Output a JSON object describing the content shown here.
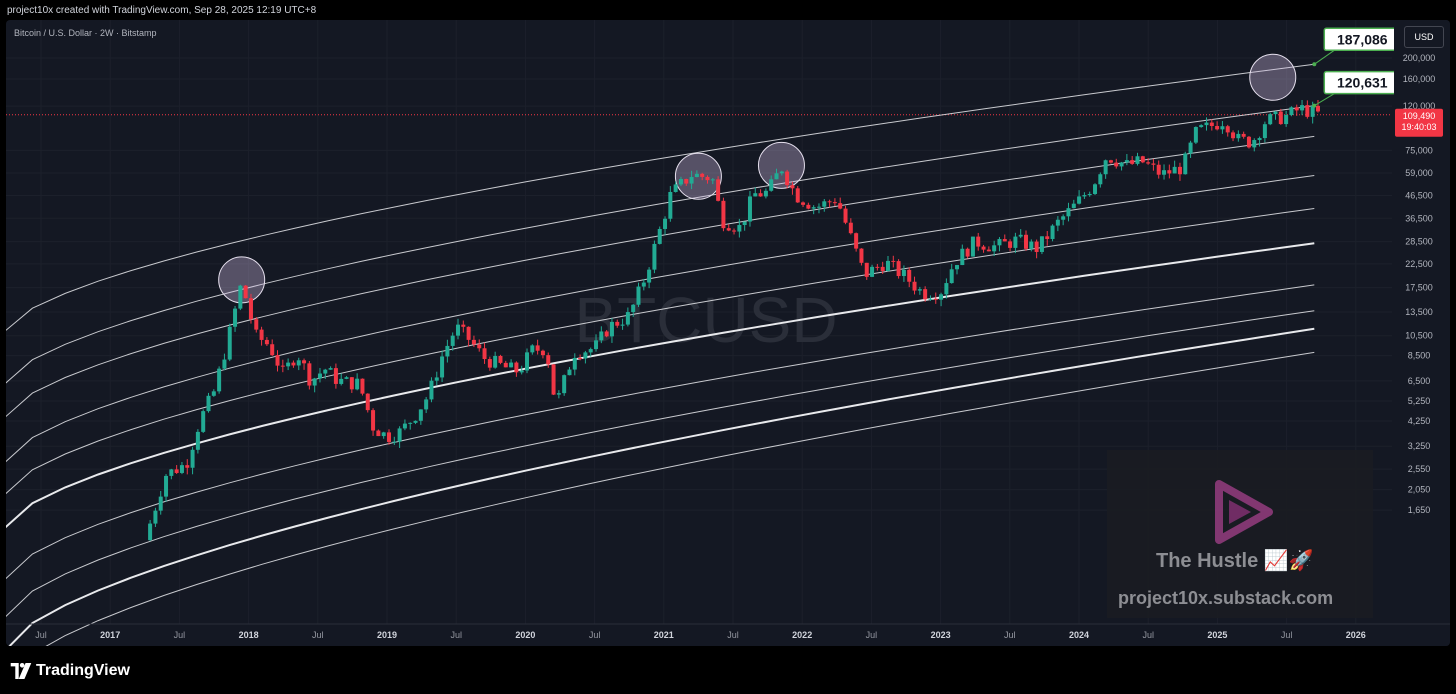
{
  "header": {
    "credit": "project10x created with TradingView.com, Sep 28, 2025 12:19 UTC+8"
  },
  "symbol_line": "Bitcoin / U.S. Dollar · 2W · Bitstamp",
  "currency": "USD",
  "watermark_symbol": "BTCUSD",
  "branding": {
    "name": "TradingView"
  },
  "watermark_logo": {
    "title": "The Hustle 📈🚀",
    "site": "project10x.substack.com"
  },
  "colors": {
    "up": "#22ab94",
    "down": "#f23645",
    "band": "#d1d4dc",
    "callout_border": "#4caf50",
    "price_tag": "#f23645",
    "background": "#141823"
  },
  "chart_data": {
    "type": "candlestick",
    "title": "Bitcoin / U.S. Dollar · 2W · Bitstamp",
    "y_scale": "log",
    "y_ticks": [
      200000,
      160000,
      120000,
      75000,
      59000,
      46500,
      36500,
      28500,
      22500,
      17500,
      13500,
      10500,
      8500,
      6500,
      5250,
      4250,
      3250,
      2550,
      2050,
      1650
    ],
    "y_tick_labels": [
      "200,000",
      "160,000",
      "120,000",
      "75,000",
      "59,000",
      "46,500",
      "36,500",
      "28,500",
      "22,500",
      "17,500",
      "13,500",
      "10,500",
      "8,500",
      "6,500",
      "5,250",
      "4,250",
      "3,250",
      "2,550",
      "2,050",
      "1,650"
    ],
    "x_tick_labels": [
      {
        "t": 2016.5,
        "label": "Jul"
      },
      {
        "t": 2017.0,
        "label": "2017"
      },
      {
        "t": 2017.5,
        "label": "Jul"
      },
      {
        "t": 2018.0,
        "label": "2018"
      },
      {
        "t": 2018.5,
        "label": "Jul"
      },
      {
        "t": 2019.0,
        "label": "2019"
      },
      {
        "t": 2019.5,
        "label": "Jul"
      },
      {
        "t": 2020.0,
        "label": "2020"
      },
      {
        "t": 2020.5,
        "label": "Jul"
      },
      {
        "t": 2021.0,
        "label": "2021"
      },
      {
        "t": 2021.5,
        "label": "Jul"
      },
      {
        "t": 2022.0,
        "label": "2022"
      },
      {
        "t": 2022.5,
        "label": "Jul"
      },
      {
        "t": 2023.0,
        "label": "2023"
      },
      {
        "t": 2023.5,
        "label": "Jul"
      },
      {
        "t": 2024.0,
        "label": "2024"
      },
      {
        "t": 2024.5,
        "label": "Jul"
      },
      {
        "t": 2025.0,
        "label": "2025"
      },
      {
        "t": 2025.5,
        "label": "Jul"
      },
      {
        "t": 2026.0,
        "label": "2026"
      }
    ],
    "last_price": {
      "value": 109490,
      "label": "109,490",
      "countdown": "19:40:03"
    },
    "callouts": [
      {
        "label": "187,086",
        "t": 2025.7,
        "value": 187086
      },
      {
        "label": "120,631",
        "t": 2025.7,
        "value": 120631
      }
    ],
    "highlight_circles": [
      {
        "t": 2017.95,
        "value": 19000
      },
      {
        "t": 2021.25,
        "value": 57000
      },
      {
        "t": 2021.85,
        "value": 64000
      },
      {
        "t": 2025.4,
        "value": 163000
      }
    ],
    "bands": [
      {
        "end": 187086,
        "start": 10500
      },
      {
        "end": 120631,
        "start": 6000
      },
      {
        "end": 87000,
        "start": 4200
      },
      {
        "end": 57500,
        "start": 2600
      },
      {
        "end": 40500,
        "start": 1850
      },
      {
        "end": 28000,
        "start": 1300,
        "bold": true
      },
      {
        "end": 18000,
        "start": 750
      },
      {
        "end": 13700,
        "start": 500
      },
      {
        "end": 11300,
        "start": 350,
        "bold": true
      },
      {
        "end": 8800,
        "start": 250
      }
    ],
    "band_t_start": 2016.2,
    "band_t_end": 2025.7,
    "price_path": [
      [
        2017.25,
        1200
      ],
      [
        2017.4,
        2400
      ],
      [
        2017.55,
        2700
      ],
      [
        2017.65,
        4300
      ],
      [
        2017.75,
        5800
      ],
      [
        2017.85,
        10000
      ],
      [
        2017.95,
        18500
      ],
      [
        2018.0,
        14000
      ],
      [
        2018.05,
        10500
      ],
      [
        2018.15,
        9500
      ],
      [
        2018.25,
        7000
      ],
      [
        2018.35,
        8800
      ],
      [
        2018.45,
        6500
      ],
      [
        2018.55,
        7400
      ],
      [
        2018.65,
        6500
      ],
      [
        2018.8,
        6300
      ],
      [
        2018.9,
        4000
      ],
      [
        2019.0,
        3600
      ],
      [
        2019.1,
        3800
      ],
      [
        2019.2,
        4500
      ],
      [
        2019.3,
        5600
      ],
      [
        2019.4,
        8500
      ],
      [
        2019.5,
        11500
      ],
      [
        2019.6,
        10000
      ],
      [
        2019.7,
        8300
      ],
      [
        2019.85,
        7500
      ],
      [
        2019.95,
        7200
      ],
      [
        2020.05,
        9000
      ],
      [
        2020.15,
        9200
      ],
      [
        2020.22,
        5000
      ],
      [
        2020.35,
        8800
      ],
      [
        2020.5,
        9200
      ],
      [
        2020.6,
        11500
      ],
      [
        2020.75,
        13000
      ],
      [
        2020.85,
        18500
      ],
      [
        2020.95,
        29000
      ],
      [
        2021.05,
        47000
      ],
      [
        2021.2,
        58000
      ],
      [
        2021.35,
        56000
      ],
      [
        2021.42,
        36000
      ],
      [
        2021.55,
        33000
      ],
      [
        2021.65,
        47000
      ],
      [
        2021.75,
        48000
      ],
      [
        2021.85,
        63000
      ],
      [
        2021.95,
        47000
      ],
      [
        2022.1,
        41000
      ],
      [
        2022.25,
        45000
      ],
      [
        2022.35,
        30000
      ],
      [
        2022.45,
        20000
      ],
      [
        2022.6,
        23000
      ],
      [
        2022.75,
        19500
      ],
      [
        2022.87,
        16500
      ],
      [
        2023.0,
        16800
      ],
      [
        2023.1,
        23000
      ],
      [
        2023.25,
        28500
      ],
      [
        2023.4,
        27000
      ],
      [
        2023.55,
        29000
      ],
      [
        2023.7,
        26500
      ],
      [
        2023.85,
        35000
      ],
      [
        2023.98,
        42500
      ],
      [
        2024.1,
        52000
      ],
      [
        2024.2,
        71000
      ],
      [
        2024.35,
        64000
      ],
      [
        2024.45,
        67000
      ],
      [
        2024.6,
        58000
      ],
      [
        2024.75,
        63000
      ],
      [
        2024.85,
        92000
      ],
      [
        2024.95,
        97000
      ],
      [
        2025.05,
        104000
      ],
      [
        2025.15,
        84000
      ],
      [
        2025.25,
        82000
      ],
      [
        2025.35,
        103000
      ],
      [
        2025.5,
        108000
      ],
      [
        2025.6,
        117000
      ],
      [
        2025.7,
        112000
      ],
      [
        2025.74,
        109490
      ]
    ]
  }
}
